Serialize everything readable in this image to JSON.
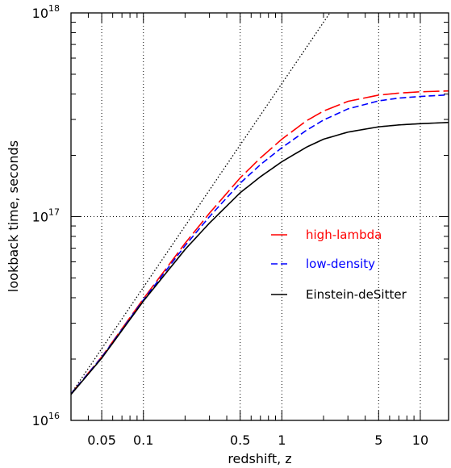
{
  "chart_data": {
    "type": "line",
    "xlabel": "redshift, z",
    "ylabel": "lookback time, seconds",
    "xscale": "log",
    "yscale": "log",
    "xlim": [
      0.03,
      16
    ],
    "ylim": [
      1e+16,
      1e+18
    ],
    "grid": true,
    "legend_position": "center-right",
    "x_tick_labels": [
      {
        "value": 0.05,
        "label": "0.05"
      },
      {
        "value": 0.1,
        "label": "0.1"
      },
      {
        "value": 0.5,
        "label": "0.5"
      },
      {
        "value": 1,
        "label": "1"
      },
      {
        "value": 5,
        "label": "5"
      },
      {
        "value": 10,
        "label": "10"
      }
    ],
    "y_tick_labels": [
      {
        "value": 1e+16,
        "base": "10",
        "exp": "16"
      },
      {
        "value": 1e+17,
        "base": "10",
        "exp": "17"
      },
      {
        "value": 1e+18,
        "base": "10",
        "exp": "18"
      }
    ],
    "x_grid_values": [
      0.05,
      0.1,
      0.5,
      1,
      5,
      10
    ],
    "y_grid_values": [
      1e+17
    ],
    "series": [
      {
        "name": "high-lambda",
        "color": "#ff0000",
        "dash": "long-dash",
        "x": [
          0.03,
          0.05,
          0.1,
          0.2,
          0.3,
          0.5,
          0.7,
          1,
          1.5,
          2,
          3,
          5,
          7,
          10,
          16
        ],
        "y": [
          1.35e+16,
          2.05e+16,
          3.95e+16,
          7.4e+16,
          1.04e+17,
          1.55e+17,
          1.94e+17,
          2.4e+17,
          2.95e+17,
          3.3e+17,
          3.68e+17,
          3.95e+17,
          4.04e+17,
          4.1e+17,
          4.14e+17
        ]
      },
      {
        "name": "low-density",
        "color": "#0000ff",
        "dash": "short-dash",
        "x": [
          0.03,
          0.05,
          0.1,
          0.2,
          0.3,
          0.5,
          0.7,
          1,
          1.5,
          2,
          3,
          5,
          7,
          10,
          16
        ],
        "y": [
          1.35e+16,
          2.04e+16,
          3.9e+16,
          7.2e+16,
          1e+17,
          1.46e+17,
          1.8e+17,
          2.18e+17,
          2.65e+17,
          2.98e+17,
          3.38e+17,
          3.7e+17,
          3.82e+17,
          3.89e+17,
          3.96e+17
        ]
      },
      {
        "name": "Einstein-deSitter",
        "color": "#000000",
        "dash": "solid",
        "x": [
          0.03,
          0.05,
          0.1,
          0.2,
          0.3,
          0.5,
          0.7,
          1,
          1.5,
          2,
          3,
          5,
          7,
          10,
          16
        ],
        "y": [
          1.34e+16,
          2.02e+16,
          3.85e+16,
          6.9e+16,
          9.3e+16,
          1.31e+17,
          1.57e+17,
          1.86e+17,
          2.19e+17,
          2.4e+17,
          2.6e+17,
          2.76e+17,
          2.82e+17,
          2.86e+17,
          2.9e+17
        ]
      },
      {
        "name": "",
        "color": "#000000",
        "dash": "dotted",
        "x": [
          0.03,
          1,
          2.2
        ],
        "y": [
          1.35e+16,
          4.5e+17,
          9.9e+17
        ]
      }
    ]
  }
}
